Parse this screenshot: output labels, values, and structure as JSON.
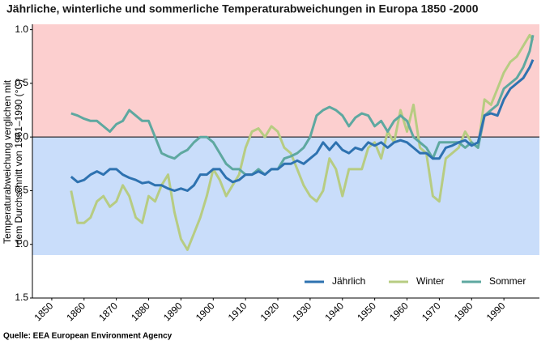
{
  "chart_data": {
    "type": "line",
    "title": "Jährliche, winterliche und sommerliche Temperaturabweichungen in Europa 1850 -2000",
    "y_label": [
      "Temperaturabweichung verglichen mit",
      "dem Durchschnitt von 1961–1990 (°C)"
    ],
    "source": "Quelle: EEA European Environment Agency",
    "x": [
      1856,
      1858,
      1860,
      1862,
      1864,
      1866,
      1868,
      1870,
      1872,
      1874,
      1876,
      1878,
      1880,
      1882,
      1884,
      1886,
      1888,
      1890,
      1892,
      1894,
      1896,
      1898,
      1900,
      1902,
      1904,
      1906,
      1908,
      1910,
      1912,
      1914,
      1916,
      1918,
      1920,
      1922,
      1924,
      1926,
      1928,
      1930,
      1932,
      1934,
      1936,
      1938,
      1940,
      1942,
      1944,
      1946,
      1948,
      1950,
      1952,
      1954,
      1956,
      1958,
      1960,
      1962,
      1964,
      1966,
      1968,
      1970,
      1972,
      1974,
      1976,
      1978,
      1980,
      1982,
      1984,
      1986,
      1988,
      1990,
      1992,
      1994,
      1996,
      1998,
      1999
    ],
    "series": [
      {
        "name": "Jährlich",
        "color": "#2e72b0",
        "values": [
          -0.37,
          -0.42,
          -0.4,
          -0.35,
          -0.32,
          -0.35,
          -0.3,
          -0.3,
          -0.35,
          -0.38,
          -0.4,
          -0.43,
          -0.42,
          -0.45,
          -0.45,
          -0.48,
          -0.5,
          -0.48,
          -0.5,
          -0.45,
          -0.35,
          -0.35,
          -0.3,
          -0.3,
          -0.38,
          -0.42,
          -0.4,
          -0.35,
          -0.35,
          -0.32,
          -0.35,
          -0.3,
          -0.3,
          -0.25,
          -0.25,
          -0.22,
          -0.25,
          -0.2,
          -0.15,
          -0.05,
          -0.12,
          -0.05,
          -0.12,
          -0.15,
          -0.1,
          -0.12,
          -0.05,
          -0.08,
          -0.05,
          -0.1,
          -0.05,
          -0.03,
          -0.05,
          -0.1,
          -0.15,
          -0.15,
          -0.2,
          -0.2,
          -0.1,
          -0.08,
          -0.05,
          -0.03,
          -0.08,
          -0.05,
          0.2,
          0.22,
          0.2,
          0.35,
          0.45,
          0.5,
          0.55,
          0.65,
          0.72
        ]
      },
      {
        "name": "Winter",
        "color": "#b7cc82",
        "values": [
          -0.5,
          -0.8,
          -0.8,
          -0.75,
          -0.6,
          -0.55,
          -0.65,
          -0.6,
          -0.45,
          -0.55,
          -0.75,
          -0.8,
          -0.55,
          -0.6,
          -0.45,
          -0.35,
          -0.7,
          -0.95,
          -1.05,
          -0.9,
          -0.75,
          -0.55,
          -0.3,
          -0.4,
          -0.55,
          -0.45,
          -0.35,
          -0.1,
          0.05,
          0.08,
          0.0,
          0.1,
          0.05,
          -0.1,
          -0.15,
          -0.3,
          -0.45,
          -0.55,
          -0.6,
          -0.5,
          -0.2,
          -0.3,
          -0.55,
          -0.3,
          -0.3,
          -0.3,
          -0.1,
          -0.05,
          -0.2,
          0.05,
          -0.05,
          0.25,
          0.05,
          0.3,
          -0.1,
          -0.15,
          -0.55,
          -0.6,
          -0.2,
          -0.15,
          -0.1,
          0.05,
          -0.05,
          -0.1,
          0.35,
          0.3,
          0.45,
          0.6,
          0.7,
          0.75,
          0.85,
          0.95,
          0.9
        ]
      },
      {
        "name": "Sommer",
        "color": "#5ea8a0",
        "values": [
          0.22,
          0.2,
          0.17,
          0.15,
          0.15,
          0.1,
          0.05,
          0.12,
          0.15,
          0.25,
          0.2,
          0.15,
          0.15,
          0.0,
          -0.15,
          -0.18,
          -0.2,
          -0.15,
          -0.12,
          -0.05,
          0.0,
          0.0,
          -0.05,
          -0.15,
          -0.25,
          -0.3,
          -0.3,
          -0.35,
          -0.35,
          -0.3,
          -0.35,
          -0.3,
          -0.3,
          -0.2,
          -0.18,
          -0.15,
          -0.1,
          0.0,
          0.2,
          0.25,
          0.28,
          0.25,
          0.2,
          0.1,
          0.18,
          0.22,
          0.2,
          0.1,
          0.15,
          0.05,
          0.15,
          0.2,
          0.15,
          0.0,
          -0.05,
          -0.1,
          -0.2,
          -0.05,
          -0.05,
          -0.05,
          -0.05,
          -0.1,
          -0.05,
          -0.1,
          0.2,
          0.25,
          0.3,
          0.45,
          0.5,
          0.55,
          0.65,
          0.8,
          0.95
        ]
      }
    ],
    "xlim": [
      1844,
      2001
    ],
    "xticks": [
      1850,
      1860,
      1870,
      1880,
      1890,
      1900,
      1910,
      1920,
      1930,
      1940,
      1950,
      1960,
      1970,
      1980,
      1990
    ],
    "ylim": [
      -1.5,
      1.05
    ],
    "yticks": [
      {
        "value": 1,
        "label": "1.0"
      },
      0.5,
      {
        "value": 0,
        "label": "0.0"
      },
      {
        "value": -0.5,
        "label": "0.5"
      },
      {
        "value": -1,
        "label": "1.0"
      },
      {
        "value": -1.5,
        "label": "1.5"
      }
    ],
    "bands": [
      {
        "range": [
          0,
          1.05
        ],
        "color": "#fccfcf"
      },
      {
        "range": [
          -1.1,
          0
        ],
        "color": "#c9ddfa"
      }
    ],
    "zero_line": 0,
    "legend": "lower right"
  }
}
